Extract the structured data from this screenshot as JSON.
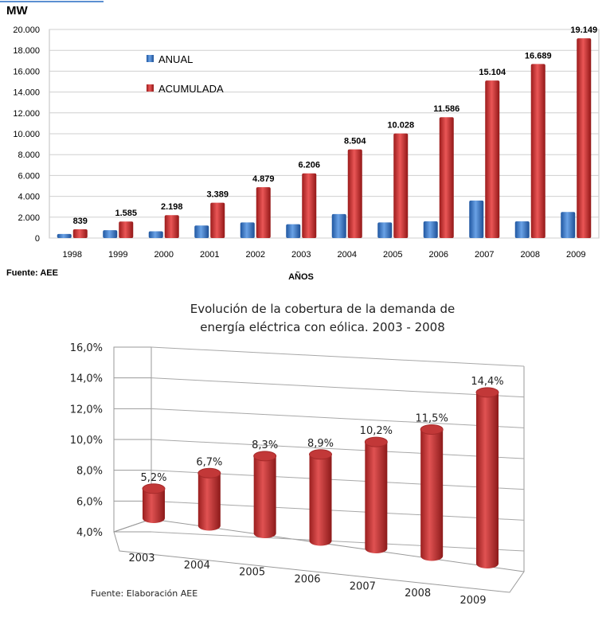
{
  "chart_data": [
    {
      "type": "bar",
      "unit_label": "MW",
      "xlabel": "AÑOS",
      "source": "Fuente: AEE",
      "categories": [
        "1998",
        "1999",
        "2000",
        "2001",
        "2002",
        "2003",
        "2004",
        "2005",
        "2006",
        "2007",
        "2008",
        "2009"
      ],
      "ylim": [
        0,
        20000
      ],
      "yticks": [
        "0",
        "2.000",
        "4.000",
        "6.000",
        "8.000",
        "10.000",
        "12.000",
        "14.000",
        "16.000",
        "18.000",
        "20.000"
      ],
      "legend_position": "top-left",
      "series": [
        {
          "name": "ANUAL",
          "color": "#3a78c4",
          "values": [
            390,
            750,
            650,
            1200,
            1500,
            1330,
            2300,
            1500,
            1600,
            3600,
            1600,
            2500
          ]
        },
        {
          "name": "ACUMULADA",
          "color": "#d23a3a",
          "values": [
            839,
            1585,
            2198,
            3389,
            4879,
            6206,
            8504,
            10028,
            11586,
            15104,
            16689,
            19149
          ],
          "labels": [
            "839",
            "1.585",
            "2.198",
            "3.389",
            "4.879",
            "6.206",
            "8.504",
            "10.028",
            "11.586",
            "15.104",
            "16.689",
            "19.149"
          ]
        }
      ]
    },
    {
      "type": "bar",
      "style": "3d-cylinder",
      "title_lines": [
        "Evolución de la cobertura de la demanda de",
        "energía eléctrica con eólica. 2003 - 2008"
      ],
      "source": "Fuente: Elaboración AEE",
      "categories": [
        "2003",
        "2004",
        "2005",
        "2006",
        "2007",
        "2008",
        "2009"
      ],
      "ylim": [
        4.0,
        16.0
      ],
      "yticks": [
        "4,0%",
        "6,0%",
        "8,0%",
        "10,0%",
        "12,0%",
        "14,0%",
        "16,0%"
      ],
      "series": [
        {
          "name": "Cobertura",
          "color": "#c83434",
          "values": [
            5.2,
            6.7,
            8.3,
            8.9,
            10.2,
            11.5,
            14.4
          ],
          "labels": [
            "5,2%",
            "6,7%",
            "8,3%",
            "8,9%",
            "10,2%",
            "11,5%",
            "14,4%"
          ]
        }
      ]
    }
  ]
}
